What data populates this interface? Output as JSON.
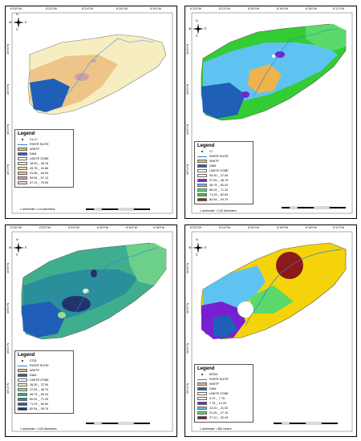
{
  "panels": [
    {
      "id": "cu",
      "legend_title": "Legend",
      "symbol_label": "Cu 2+",
      "items": [
        {
          "label": "RIVER SUITE",
          "color": "#2c7fd0",
          "kind": "line"
        },
        {
          "label": "WWTP",
          "color": "#e8b87a",
          "kind": "box"
        },
        {
          "label": "DAM",
          "color": "#1f5fb8",
          "kind": "box"
        },
        {
          "label": "LIMITE ZONE",
          "color": "#ffffff",
          "kind": "box"
        },
        {
          "label": "18.90 _ 28.78",
          "color": "#f6eec0",
          "kind": "box"
        },
        {
          "label": "28.78 _ 41.66",
          "color": "#f2d9a0",
          "kind": "box"
        },
        {
          "label": "41.66 _ 54.54",
          "color": "#eec489",
          "kind": "box"
        },
        {
          "label": "54.54 _ 67.12",
          "color": "#c9a3a0",
          "kind": "box"
        },
        {
          "label": "67.12 _ 79.90",
          "color": "#f5d7d0",
          "kind": "box"
        }
      ],
      "scale_text": "1 centimeter = 0.6 kilometers",
      "top_coords": [
        "6°23'0\"W",
        "6°22'0\"W",
        "6°21'0\"W",
        "6°20'0\"W",
        "6°19'0\"W"
      ],
      "lat_coords": [
        "34°4'0\"N",
        "34°3'0\"N",
        "34°2'0\"N",
        "34°1'0\"N"
      ]
    },
    {
      "id": "cl",
      "legend_title": "Legend",
      "symbol_label": "Cl",
      "items": [
        {
          "label": "RIVER SUITE",
          "color": "#2c7fd0",
          "kind": "line"
        },
        {
          "label": "WWTP",
          "color": "#e8b87a",
          "kind": "box"
        },
        {
          "label": "DAM",
          "color": "#1f5fb8",
          "kind": "box"
        },
        {
          "label": "LIMITE ZONE",
          "color": "#ffffff",
          "kind": "box"
        },
        {
          "label": "26.30 _ 37.54",
          "color": "#ffffff",
          "kind": "box"
        },
        {
          "label": "37.54 _ 48.79",
          "color": "#7a1fd0",
          "kind": "box"
        },
        {
          "label": "48.79 _ 60.04",
          "color": "#5ec3f0",
          "kind": "box"
        },
        {
          "label": "60.04 _ 71.29",
          "color": "#5bd96a",
          "kind": "box"
        },
        {
          "label": "71.29 _ 82.54",
          "color": "#33cc33",
          "kind": "box"
        },
        {
          "label": "82.54 _ 93.79",
          "color": "#8b2d2d",
          "kind": "box"
        }
      ],
      "scale_text": "1 centimeter = 0.52 kilometers",
      "top_coords": [
        "6°22'0\"W",
        "6°21'0\"W",
        "6°20'0\"W",
        "6°19'0\"W",
        "6°18'0\"W",
        "6°17'0\"W"
      ],
      "lat_coords": [
        "34°4'0\"N",
        "34°3'0\"N",
        "34°2'0\"N",
        "34°1'0\"N"
      ]
    },
    {
      "id": "cod",
      "legend_title": "Legend",
      "symbol_label": "COD",
      "items": [
        {
          "label": "RIVER SUITE",
          "color": "#2c7fd0",
          "kind": "line"
        },
        {
          "label": "WWTP",
          "color": "#e8b87a",
          "kind": "box"
        },
        {
          "label": "DAM",
          "color": "#1f5fb8",
          "kind": "box"
        },
        {
          "label": "LIMITE ZONE",
          "color": "#ffffff",
          "kind": "box"
        },
        {
          "label": "26.30 _ 37.54",
          "color": "#e6f2c4",
          "kind": "box"
        },
        {
          "label": "37.54 _ 48.79",
          "color": "#9fd98e",
          "kind": "box"
        },
        {
          "label": "48.79 _ 60.04",
          "color": "#3fae8f",
          "kind": "box"
        },
        {
          "label": "60.04 _ 71.29",
          "color": "#2a8f9a",
          "kind": "box"
        },
        {
          "label": "71.29 _ 82.54",
          "color": "#2b5f9a",
          "kind": "box"
        },
        {
          "label": "82.54 _ 93.79",
          "color": "#22336b",
          "kind": "box"
        }
      ],
      "scale_text": "1 centimeter = 0.52 kilometers",
      "top_coords": [
        "6°23'0\"W",
        "6°22'0\"W",
        "6°21'0\"W",
        "6°20'0\"W",
        "6°19'0\"W",
        "6°18'0\"W"
      ],
      "lat_coords": [
        "34°4'0\"N",
        "34°3'0\"N",
        "34°2'0\"N",
        "34°1'0\"N"
      ]
    },
    {
      "id": "bod",
      "legend_title": "Legend",
      "symbol_label": "BOD5",
      "items": [
        {
          "label": "RIVER SUITE",
          "color": "#2c7fd0",
          "kind": "line"
        },
        {
          "label": "WWTP",
          "color": "#e8b87a",
          "kind": "box"
        },
        {
          "label": "DAM",
          "color": "#1f5fb8",
          "kind": "box"
        },
        {
          "label": "LIMITE ZONE",
          "color": "#ffffff",
          "kind": "box"
        },
        {
          "label": "4.72 _ 7.75",
          "color": "#ffffff",
          "kind": "box"
        },
        {
          "label": "7.75 _ 14.20",
          "color": "#7a1fd0",
          "kind": "box"
        },
        {
          "label": "14.20 _ 21.00",
          "color": "#5ec3f0",
          "kind": "box"
        },
        {
          "label": "21.00 _ 27.10",
          "color": "#5bd96a",
          "kind": "box"
        },
        {
          "label": "27.10 _ 32.43",
          "color": "#8b1a1a",
          "kind": "box"
        }
      ],
      "scale_text": "1 centimeter = 560 meters",
      "top_coords": [
        "6°22'0\"W",
        "6°21'0\"W",
        "6°20'0\"W",
        "6°19'0\"W",
        "6°18'0\"W",
        "6°17'0\"W"
      ],
      "lat_coords": [
        "34°4'0\"N",
        "34°3'0\"N",
        "34°2'0\"N",
        "34°1'0\"N"
      ]
    }
  ],
  "north_arrow": {
    "n": "N",
    "s": "S",
    "e": "E",
    "w": "W"
  },
  "scale_ticks": [
    "0",
    "0.5",
    "1",
    "2",
    "3",
    "4"
  ]
}
